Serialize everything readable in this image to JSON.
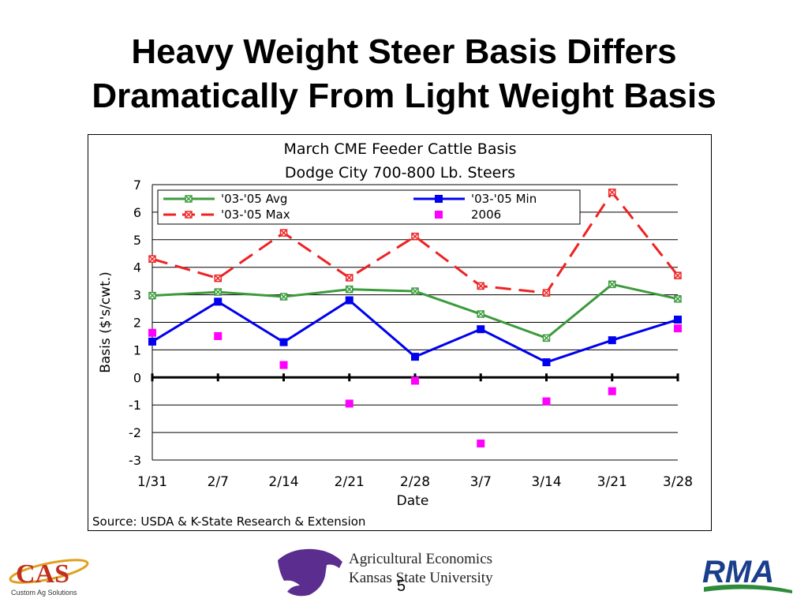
{
  "slide": {
    "title_line1": "Heavy Weight Steer Basis Differs",
    "title_line2": "Dramatically From Light Weight Basis",
    "source": "Source:  USDA & K-State Research & Extension",
    "page_number": "5"
  },
  "logos": {
    "cas": {
      "text": "CAS",
      "subtitle": "Custom Ag Solutions"
    },
    "ksu": {
      "line1": "Agricultural Economics",
      "line2": "Kansas State University"
    },
    "rma": {
      "text": "RMA"
    }
  },
  "colors": {
    "avg": "#3c9a3c",
    "min": "#0000ee",
    "max": "#ee2222",
    "y2006": "#ff00ff"
  },
  "chart_data": {
    "type": "line",
    "title": "March CME Feeder Cattle Basis",
    "subtitle": "Dodge City 700-800 Lb. Steers",
    "xlabel": "Date",
    "ylabel": "Basis ($'s/cwt.)",
    "ylim": [
      -3,
      7
    ],
    "yticks": [
      7,
      6,
      5,
      4,
      3,
      2,
      1,
      0,
      -1,
      -2,
      -3
    ],
    "categories": [
      "1/31",
      "2/7",
      "2/14",
      "2/21",
      "2/28",
      "3/7",
      "3/14",
      "3/21",
      "3/28"
    ],
    "grid": true,
    "legend_position": "top",
    "series": [
      {
        "name": "'03-'05 Avg",
        "style": "line-x-marker",
        "values": [
          2.97,
          3.1,
          2.93,
          3.2,
          3.13,
          2.3,
          1.43,
          3.38,
          2.85
        ]
      },
      {
        "name": "'03-'05 Min",
        "style": "line-square-marker",
        "values": [
          1.3,
          2.75,
          1.28,
          2.8,
          0.75,
          1.75,
          0.55,
          1.35,
          2.1
        ]
      },
      {
        "name": "'03-'05 Max",
        "style": "dashed-x-marker",
        "values": [
          4.3,
          3.6,
          5.25,
          3.62,
          5.12,
          3.32,
          3.07,
          6.72,
          3.7
        ]
      },
      {
        "name": "2006",
        "style": "marker-only",
        "values": [
          1.62,
          1.5,
          0.45,
          -0.95,
          -0.12,
          -2.4,
          -0.87,
          -0.5,
          1.78
        ]
      }
    ]
  }
}
